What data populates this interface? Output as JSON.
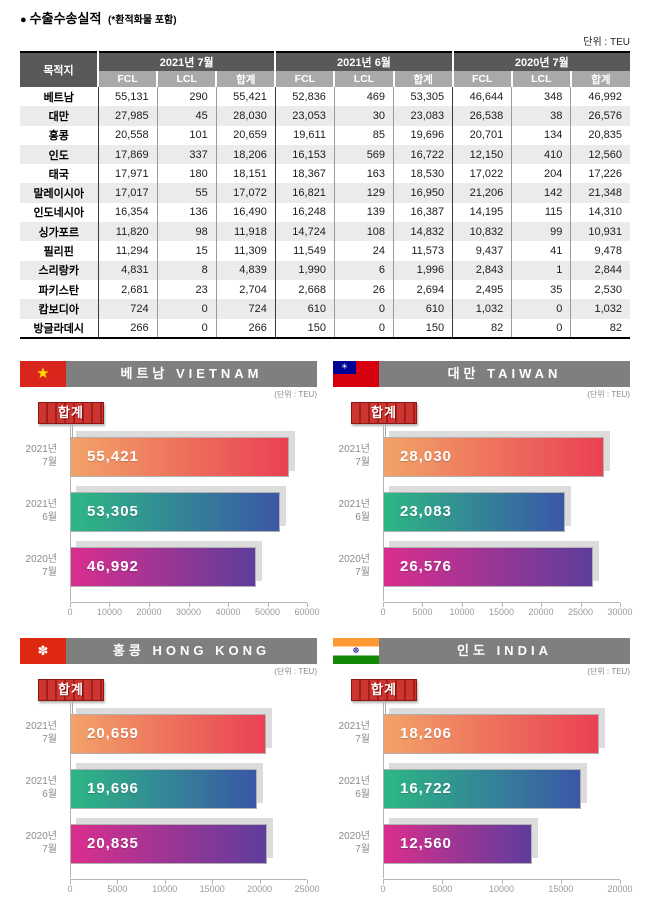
{
  "page": {
    "title_bullet": "●",
    "title": "수출수송실적",
    "title_note": "(*환적화물 포함)",
    "unit_label": "단위 : TEU"
  },
  "icons": {
    "star": "★",
    "sun": "☀",
    "flower": "✽",
    "chakra": "☸"
  },
  "table": {
    "dest_header": "목적지",
    "groups": [
      "2021년 7월",
      "2021년 6월",
      "2020년 7월"
    ],
    "sub_headers": [
      "FCL",
      "LCL",
      "합계"
    ],
    "rows": [
      {
        "dest": "베트남",
        "values": [
          "55,131",
          "290",
          "55,421",
          "52,836",
          "469",
          "53,305",
          "46,644",
          "348",
          "46,992"
        ]
      },
      {
        "dest": "대만",
        "values": [
          "27,985",
          "45",
          "28,030",
          "23,053",
          "30",
          "23,083",
          "26,538",
          "38",
          "26,576"
        ]
      },
      {
        "dest": "홍콩",
        "values": [
          "20,558",
          "101",
          "20,659",
          "19,611",
          "85",
          "19,696",
          "20,701",
          "134",
          "20,835"
        ]
      },
      {
        "dest": "인도",
        "values": [
          "17,869",
          "337",
          "18,206",
          "16,153",
          "569",
          "16,722",
          "12,150",
          "410",
          "12,560"
        ]
      },
      {
        "dest": "태국",
        "values": [
          "17,971",
          "180",
          "18,151",
          "18,367",
          "163",
          "18,530",
          "17,022",
          "204",
          "17,226"
        ]
      },
      {
        "dest": "말레이시아",
        "values": [
          "17,017",
          "55",
          "17,072",
          "16,821",
          "129",
          "16,950",
          "21,206",
          "142",
          "21,348"
        ]
      },
      {
        "dest": "인도네시아",
        "values": [
          "16,354",
          "136",
          "16,490",
          "16,248",
          "139",
          "16,387",
          "14,195",
          "115",
          "14,310"
        ]
      },
      {
        "dest": "싱가포르",
        "values": [
          "11,820",
          "98",
          "11,918",
          "14,724",
          "108",
          "14,832",
          "10,832",
          "99",
          "10,931"
        ]
      },
      {
        "dest": "필리핀",
        "values": [
          "11,294",
          "15",
          "11,309",
          "11,549",
          "24",
          "11,573",
          "9,437",
          "41",
          "9,478"
        ]
      },
      {
        "dest": "스리랑카",
        "values": [
          "4,831",
          "8",
          "4,839",
          "1,990",
          "6",
          "1,996",
          "2,843",
          "1",
          "2,844"
        ]
      },
      {
        "dest": "파키스탄",
        "values": [
          "2,681",
          "23",
          "2,704",
          "2,668",
          "26",
          "2,694",
          "2,495",
          "35",
          "2,530"
        ]
      },
      {
        "dest": "캄보디아",
        "values": [
          "724",
          "0",
          "724",
          "610",
          "0",
          "610",
          "1,032",
          "0",
          "1,032"
        ]
      },
      {
        "dest": "방글라데시",
        "values": [
          "266",
          "0",
          "266",
          "150",
          "0",
          "150",
          "82",
          "0",
          "82"
        ]
      }
    ]
  },
  "chart_data": [
    {
      "type": "bar",
      "orientation": "horizontal",
      "flag": "vietnam",
      "title": "베트남  VIETNAM",
      "unit_note": "(단위 : TEU)",
      "badge": "합계",
      "categories": [
        "2021년 7월",
        "2021년 6월",
        "2020년 7월"
      ],
      "values": [
        55421,
        53305,
        46992
      ],
      "value_labels": [
        "55,421",
        "53,305",
        "46,992"
      ],
      "xlim": [
        0,
        60000
      ],
      "ticks": [
        0,
        10000,
        20000,
        30000,
        40000,
        50000,
        60000
      ],
      "bar_colors": [
        [
          "#F2A368",
          "#EA4153"
        ],
        [
          "#2DB784",
          "#3A57A7"
        ],
        [
          "#DA2E8D",
          "#5E3D9C"
        ]
      ]
    },
    {
      "type": "bar",
      "orientation": "horizontal",
      "flag": "taiwan",
      "title": "대만  TAIWAN",
      "unit_note": "(단위 : TEU)",
      "badge": "합계",
      "categories": [
        "2021년 7월",
        "2021년 6월",
        "2020년 7월"
      ],
      "values": [
        28030,
        23083,
        26576
      ],
      "value_labels": [
        "28,030",
        "23,083",
        "26,576"
      ],
      "xlim": [
        0,
        30000
      ],
      "ticks": [
        0,
        5000,
        10000,
        15000,
        20000,
        25000,
        30000
      ],
      "bar_colors": [
        [
          "#F2A368",
          "#EA4153"
        ],
        [
          "#2DB784",
          "#3A57A7"
        ],
        [
          "#DA2E8D",
          "#5E3D9C"
        ]
      ]
    },
    {
      "type": "bar",
      "orientation": "horizontal",
      "flag": "hongkong",
      "title": "홍콩  HONG  KONG",
      "unit_note": "(단위 : TEU)",
      "badge": "합계",
      "categories": [
        "2021년 7월",
        "2021년 6월",
        "2020년 7월"
      ],
      "values": [
        20659,
        19696,
        20835
      ],
      "value_labels": [
        "20,659",
        "19,696",
        "20,835"
      ],
      "xlim": [
        0,
        25000
      ],
      "ticks": [
        0,
        5000,
        10000,
        15000,
        20000,
        25000
      ],
      "bar_colors": [
        [
          "#F2A368",
          "#EA4153"
        ],
        [
          "#2DB784",
          "#3A57A7"
        ],
        [
          "#DA2E8D",
          "#5E3D9C"
        ]
      ]
    },
    {
      "type": "bar",
      "orientation": "horizontal",
      "flag": "india",
      "title": "인도  INDIA",
      "unit_note": "(단위 : TEU)",
      "badge": "합계",
      "categories": [
        "2021년 7월",
        "2021년 6월",
        "2020년 7월"
      ],
      "values": [
        18206,
        16722,
        12560
      ],
      "value_labels": [
        "18,206",
        "16,722",
        "12,560"
      ],
      "xlim": [
        0,
        20000
      ],
      "ticks": [
        0,
        5000,
        10000,
        15000,
        20000
      ],
      "bar_colors": [
        [
          "#F2A368",
          "#EA4153"
        ],
        [
          "#2DB784",
          "#3A57A7"
        ],
        [
          "#DA2E8D",
          "#5E3D9C"
        ]
      ]
    }
  ],
  "colors": {
    "header_dark": "#595959",
    "header_light": "#a9a9a9",
    "row_alt": "#ebebeb",
    "titlebar_gray": "#7f7f7f",
    "badge_red": "#c8282d",
    "bar_shadow": "#dcdcdc"
  }
}
